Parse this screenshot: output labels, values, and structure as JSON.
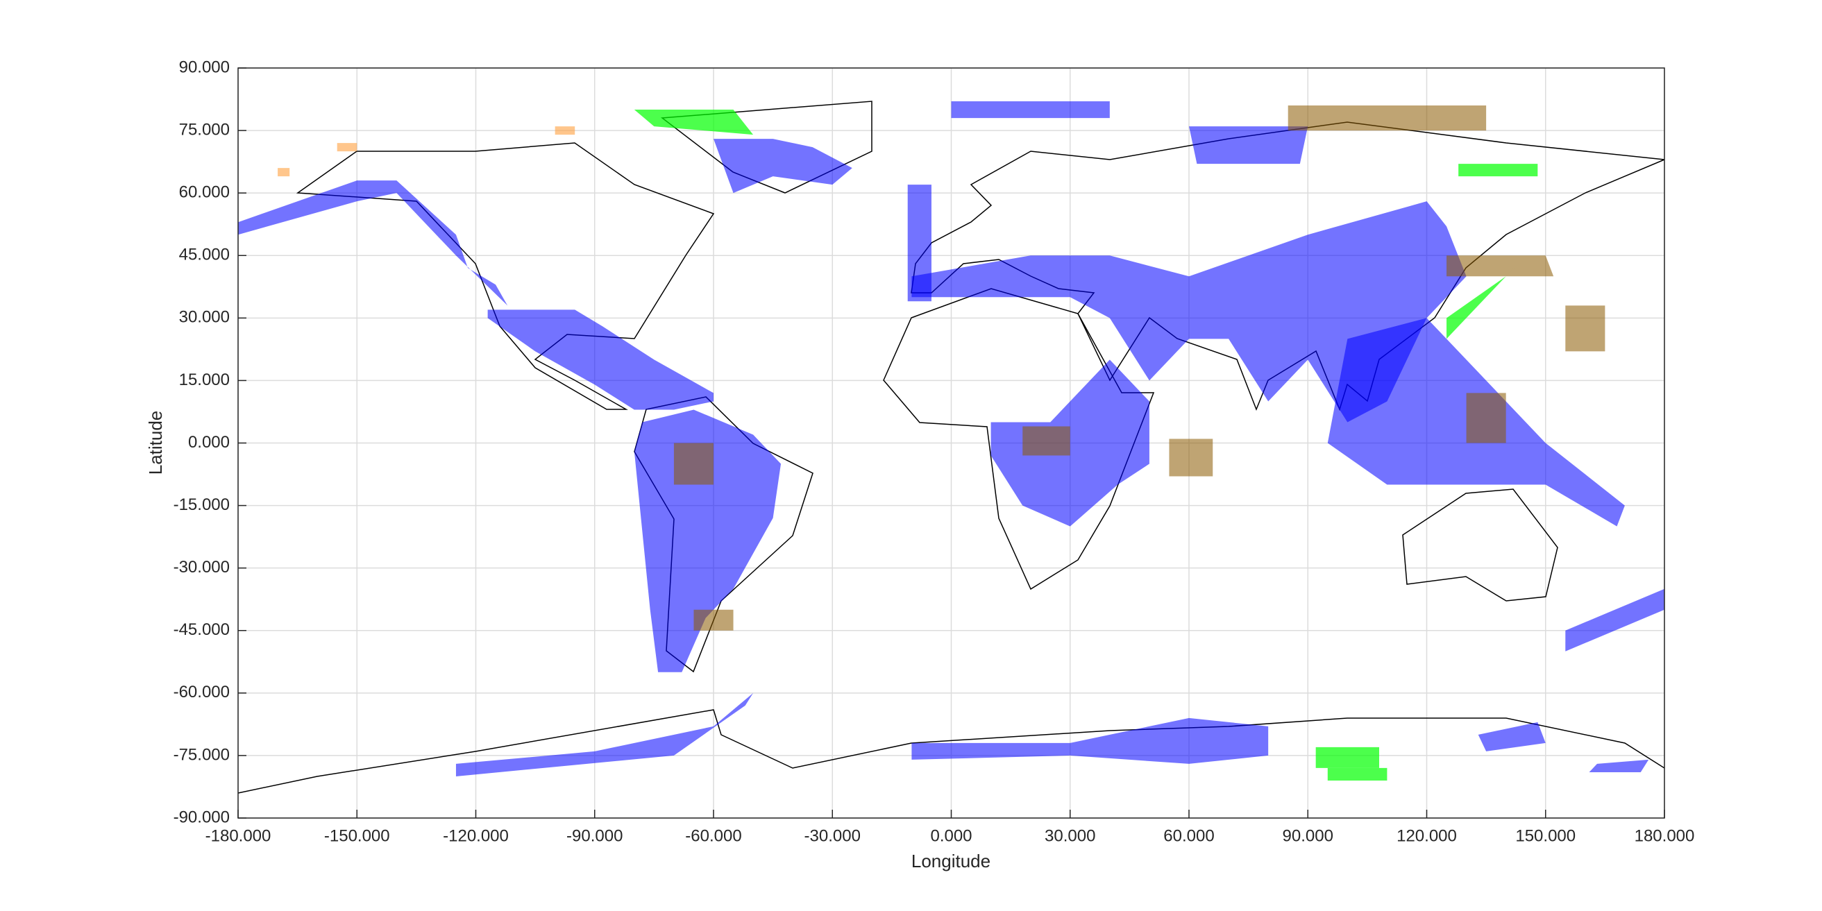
{
  "chart_data": {
    "type": "map-patches",
    "x_label": "Longitude",
    "y_label": "Latitude",
    "xlim": [
      -180,
      180
    ],
    "ylim": [
      -90,
      90
    ],
    "grid": true,
    "xticks": [
      {
        "value": -180,
        "label": "-180.000"
      },
      {
        "value": -150,
        "label": "-150.000"
      },
      {
        "value": -120,
        "label": "-120.000"
      },
      {
        "value": -90,
        "label": "-90.000"
      },
      {
        "value": -60,
        "label": "-60.000"
      },
      {
        "value": -30,
        "label": "-30.000"
      },
      {
        "value": 0,
        "label": "0.000"
      },
      {
        "value": 30,
        "label": "30.000"
      },
      {
        "value": 60,
        "label": "60.000"
      },
      {
        "value": 90,
        "label": "90.000"
      },
      {
        "value": 120,
        "label": "120.000"
      },
      {
        "value": 150,
        "label": "150.000"
      },
      {
        "value": 180,
        "label": "180.000"
      }
    ],
    "yticks": [
      {
        "value": 90,
        "label": "90.000"
      },
      {
        "value": 75,
        "label": "75.000"
      },
      {
        "value": 60,
        "label": "60.000"
      },
      {
        "value": 45,
        "label": "45.000"
      },
      {
        "value": 30,
        "label": "30.000"
      },
      {
        "value": 15,
        "label": "15.000"
      },
      {
        "value": 0,
        "label": "0.000"
      },
      {
        "value": -15,
        "label": "-15.000"
      },
      {
        "value": -30,
        "label": "-30.000"
      },
      {
        "value": -45,
        "label": "-45.000"
      },
      {
        "value": -60,
        "label": "-60.000"
      },
      {
        "value": -75,
        "label": "-75.000"
      },
      {
        "value": -90,
        "label": "-90.000"
      }
    ],
    "series": [
      {
        "color": "#0000ff",
        "alpha": 0.55,
        "patches": [
          {
            "x": [
              -180,
              -150,
              -140,
              -125,
              -122,
              -115,
              -112,
              -125,
              -140,
              -150,
              -180
            ],
            "y": [
              53,
              63,
              63,
              50,
              42,
              38,
              33,
              45,
              60,
              58,
              50
            ]
          },
          {
            "x": [
              -117,
              -95,
              -88,
              -75,
              -60,
              -60,
              -70,
              -80,
              -90,
              -105,
              -117
            ],
            "y": [
              32,
              32,
              28,
              20,
              12,
              10,
              8,
              8,
              14,
              22,
              30
            ]
          },
          {
            "x": [
              -78,
              -65,
              -50,
              -43,
              -45,
              -55,
              -62,
              -68,
              -74,
              -76,
              -80
            ],
            "y": [
              5,
              8,
              2,
              -5,
              -18,
              -35,
              -42,
              -55,
              -55,
              -40,
              -2
            ]
          },
          {
            "x": [
              -60,
              -45,
              -35,
              -25,
              -30,
              -45,
              -55
            ],
            "y": [
              73,
              73,
              71,
              66,
              62,
              64,
              60
            ]
          },
          {
            "x": [
              0,
              40,
              40,
              0
            ],
            "y": [
              78,
              78,
              82,
              82
            ]
          },
          {
            "x": [
              -10,
              20,
              40,
              60,
              90,
              120,
              125,
              130,
              120,
              110,
              100,
              90,
              80,
              70,
              60,
              50,
              40,
              30,
              15,
              -10
            ],
            "y": [
              40,
              45,
              45,
              40,
              50,
              58,
              52,
              40,
              30,
              10,
              5,
              20,
              10,
              25,
              25,
              15,
              30,
              35,
              35,
              35
            ]
          },
          {
            "x": [
              -11,
              -5,
              -5,
              -11
            ],
            "y": [
              34,
              34,
              62,
              62
            ]
          },
          {
            "x": [
              60,
              90,
              88,
              62
            ],
            "y": [
              76,
              76,
              67,
              67
            ]
          },
          {
            "x": [
              10,
              25,
              40,
              50,
              50,
              42,
              30,
              18,
              10
            ],
            "y": [
              5,
              5,
              20,
              10,
              -5,
              -10,
              -20,
              -15,
              -3
            ]
          },
          {
            "x": [
              100,
              120,
              130,
              150,
              170,
              168,
              150,
              130,
              110,
              95
            ],
            "y": [
              25,
              30,
              20,
              0,
              -15,
              -20,
              -10,
              -10,
              -10,
              0
            ]
          },
          {
            "x": [
              -125,
              -90,
              -60,
              -50,
              -52,
              -70,
              -125
            ],
            "y": [
              -77,
              -74,
              -68,
              -60,
              -63,
              -75,
              -80
            ]
          },
          {
            "x": [
              -10,
              30,
              60,
              80,
              80,
              60,
              30,
              -10
            ],
            "y": [
              -72,
              -72,
              -66,
              -68,
              -75,
              -77,
              -75,
              -76
            ]
          },
          {
            "x": [
              155,
              180,
              180,
              155
            ],
            "y": [
              -45,
              -35,
              -40,
              -50
            ]
          },
          {
            "x": [
              135,
              150,
              148,
              133
            ],
            "y": [
              -74,
              -72,
              -67,
              -70
            ]
          },
          {
            "x": [
              163,
              176,
              174,
              161
            ],
            "y": [
              -77,
              -76,
              -79,
              -79
            ]
          }
        ]
      },
      {
        "color": "#00ff00",
        "alpha": 0.7,
        "patches": [
          {
            "x": [
              -80,
              -55,
              -50,
              -75
            ],
            "y": [
              80,
              80,
              74,
              76
            ]
          },
          {
            "x": [
              128,
              148,
              148,
              128
            ],
            "y": [
              67,
              67,
              64,
              64
            ]
          },
          {
            "x": [
              125,
              140,
              145,
              135,
              125
            ],
            "y": [
              30,
              40,
              45,
              35,
              25
            ]
          },
          {
            "x": [
              92,
              108,
              108,
              92
            ],
            "y": [
              -78,
              -78,
              -73,
              -73
            ]
          },
          {
            "x": [
              95,
              110,
              110,
              95
            ],
            "y": [
              -81,
              -81,
              -78,
              -78
            ]
          }
        ]
      },
      {
        "color": "#8b5a00",
        "alpha": 0.55,
        "patches": [
          {
            "x": [
              85,
              135,
              135,
              85
            ],
            "y": [
              75,
              75,
              81,
              81
            ]
          },
          {
            "x": [
              125,
              152,
              150,
              125
            ],
            "y": [
              40,
              40,
              45,
              45
            ]
          },
          {
            "x": [
              130,
              140,
              140,
              130
            ],
            "y": [
              0,
              0,
              12,
              12
            ]
          },
          {
            "x": [
              55,
              66,
              66,
              55
            ],
            "y": [
              -8,
              -8,
              1,
              1
            ]
          },
          {
            "x": [
              18,
              30,
              30,
              18
            ],
            "y": [
              -3,
              -3,
              4,
              4
            ]
          },
          {
            "x": [
              -70,
              -60,
              -60,
              -70
            ],
            "y": [
              -10,
              -10,
              0,
              0
            ]
          },
          {
            "x": [
              155,
              165,
              165,
              155
            ],
            "y": [
              22,
              22,
              33,
              33
            ]
          },
          {
            "x": [
              -65,
              -55,
              -55,
              -65
            ],
            "y": [
              -45,
              -45,
              -40,
              -40
            ]
          }
        ]
      },
      {
        "color": "#ffa040",
        "alpha": 0.6,
        "patches": [
          {
            "x": [
              -155,
              -150,
              -150,
              -155
            ],
            "y": [
              70,
              70,
              72,
              72
            ]
          },
          {
            "x": [
              -100,
              -95,
              -95,
              -100
            ],
            "y": [
              74,
              74,
              76,
              76
            ]
          },
          {
            "x": [
              -170,
              -167,
              -167,
              -170
            ],
            "y": [
              64,
              64,
              66,
              66
            ]
          }
        ]
      }
    ]
  }
}
